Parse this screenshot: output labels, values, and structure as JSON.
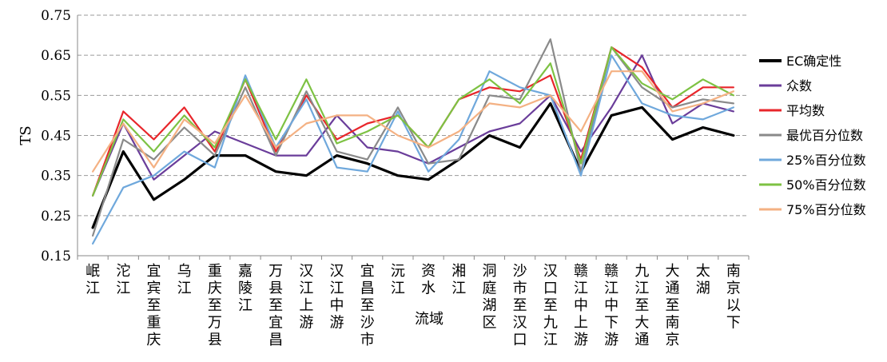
{
  "chart_data": {
    "type": "line",
    "title": "",
    "xlabel": "流域",
    "ylabel": "TS",
    "ylim": [
      0.15,
      0.75
    ],
    "yticks": [
      "0.15",
      "0.25",
      "0.35",
      "0.45",
      "0.55",
      "0.65",
      "0.75"
    ],
    "grid": "horizontal dashed",
    "legend_position": "right",
    "categories": [
      "岷江",
      "沱江",
      "宜宾至重庆",
      "乌江",
      "重庆至万县",
      "嘉陵江",
      "万县至宜昌",
      "汉江上游",
      "汉江中游",
      "宜昌至沙市",
      "沅江",
      "资水",
      "湘江",
      "洞庭湖区",
      "沙市至汉口",
      "汉口至九江",
      "赣江中上游",
      "赣江中下游",
      "九江至大通",
      "大通至南京",
      "太湖",
      "南京以下"
    ],
    "series": [
      {
        "name": "EC确定性",
        "color": "#000000",
        "width": 3.2,
        "values": [
          0.22,
          0.41,
          0.29,
          0.34,
          0.4,
          0.4,
          0.36,
          0.35,
          0.4,
          0.38,
          0.35,
          0.34,
          0.39,
          0.45,
          0.42,
          0.53,
          0.36,
          0.5,
          0.52,
          0.44,
          0.47,
          0.45
        ]
      },
      {
        "name": "众数",
        "color": "#6a3d9a",
        "width": 2.2,
        "values": [
          0.3,
          0.48,
          0.34,
          0.4,
          0.46,
          0.43,
          0.4,
          0.4,
          0.5,
          0.42,
          0.41,
          0.38,
          0.42,
          0.46,
          0.48,
          0.55,
          0.41,
          0.52,
          0.65,
          0.48,
          0.53,
          0.51
        ]
      },
      {
        "name": "平均数",
        "color": "#e8262b",
        "width": 2.2,
        "values": [
          0.3,
          0.51,
          0.44,
          0.52,
          0.41,
          0.59,
          0.41,
          0.55,
          0.44,
          0.48,
          0.5,
          0.42,
          0.54,
          0.57,
          0.56,
          0.6,
          0.39,
          0.67,
          0.62,
          0.52,
          0.57,
          0.57
        ]
      },
      {
        "name": "最优百分位数",
        "color": "#8a8a8a",
        "width": 2.2,
        "values": [
          0.2,
          0.44,
          0.39,
          0.47,
          0.4,
          0.57,
          0.4,
          0.56,
          0.41,
          0.39,
          0.52,
          0.38,
          0.39,
          0.55,
          0.54,
          0.69,
          0.36,
          0.67,
          0.57,
          0.52,
          0.54,
          0.53
        ]
      },
      {
        "name": "25%百分位数",
        "color": "#6fa8dc",
        "width": 2.2,
        "values": [
          0.18,
          0.32,
          0.35,
          0.41,
          0.37,
          0.6,
          0.42,
          0.54,
          0.37,
          0.36,
          0.51,
          0.36,
          0.44,
          0.61,
          0.57,
          0.55,
          0.35,
          0.65,
          0.53,
          0.5,
          0.49,
          0.52
        ]
      },
      {
        "name": "50%百分位数",
        "color": "#7dc243",
        "width": 2.2,
        "values": [
          0.3,
          0.49,
          0.41,
          0.5,
          0.42,
          0.59,
          0.44,
          0.59,
          0.43,
          0.46,
          0.5,
          0.42,
          0.54,
          0.59,
          0.53,
          0.63,
          0.38,
          0.67,
          0.58,
          0.54,
          0.59,
          0.55
        ]
      },
      {
        "name": "75%百分位数",
        "color": "#f4b183",
        "width": 2.2,
        "values": [
          0.36,
          0.48,
          0.37,
          0.49,
          0.43,
          0.55,
          0.42,
          0.48,
          0.5,
          0.5,
          0.45,
          0.42,
          0.46,
          0.53,
          0.52,
          0.55,
          0.46,
          0.61,
          0.61,
          0.51,
          0.53,
          0.56
        ]
      }
    ]
  }
}
